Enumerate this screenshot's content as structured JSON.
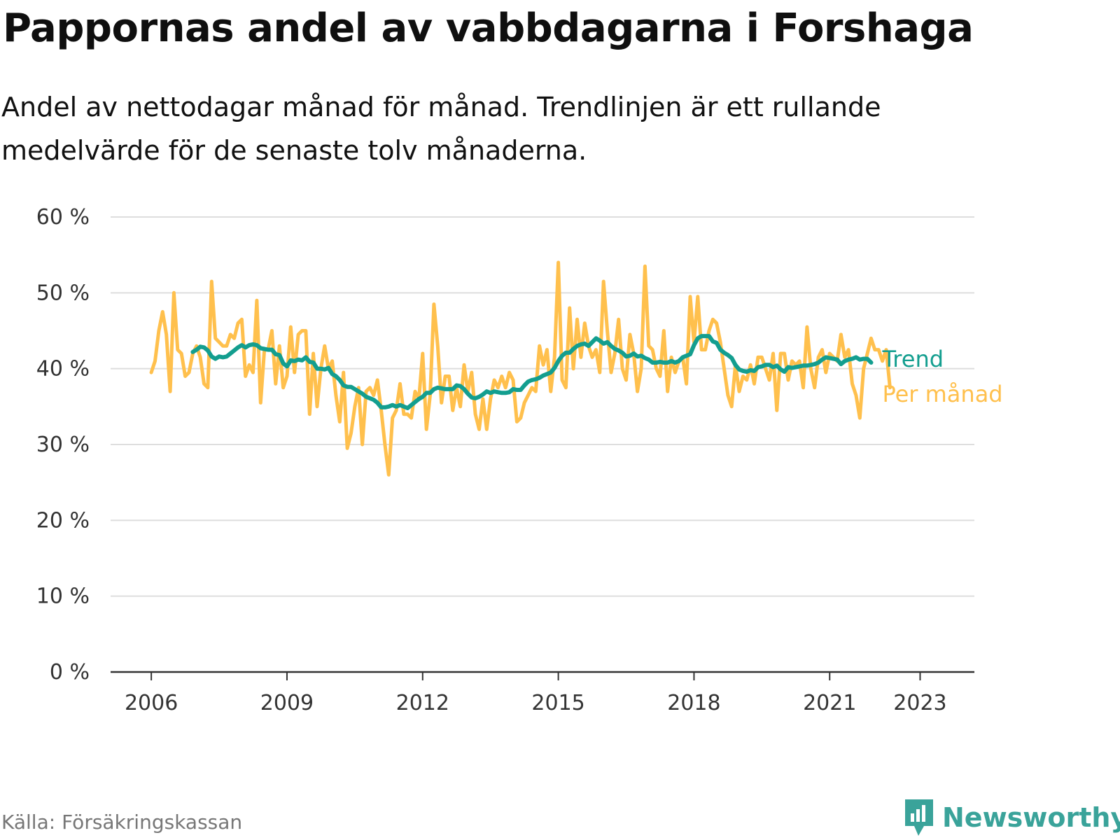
{
  "chart_data": {
    "type": "line",
    "title": "Pappornas andel av vabbdagarna i Forshaga",
    "subtitle_lines": [
      "Andel av nettodagar månad för månad. Trendlinjen är ett rullande",
      "medelvärde för de senaste tolv månaderna."
    ],
    "xlabel": "",
    "ylabel": "",
    "ylim": [
      0,
      60
    ],
    "yticks": [
      0,
      10,
      20,
      30,
      40,
      50,
      60
    ],
    "ytick_labels": [
      "0 %",
      "10 %",
      "20 %",
      "30 %",
      "40 %",
      "50 %",
      "60 %"
    ],
    "xticks": [
      2006,
      2009,
      2012,
      2015,
      2018,
      2021,
      2023
    ],
    "xtick_labels": [
      "2006",
      "2009",
      "2012",
      "2015",
      "2018",
      "2021",
      "2023"
    ],
    "xlim": [
      2005.1,
      2024.2
    ],
    "grid": true,
    "legend": "right-end labels",
    "series": [
      {
        "name": "Per månad",
        "color": "#ffc04d",
        "x_start": 2006.0,
        "step": 0.08333,
        "values": [
          39.5,
          41,
          45,
          47.5,
          44.5,
          37,
          50,
          42.5,
          42,
          39,
          39.5,
          42,
          43,
          41.5,
          38,
          37.5,
          51.5,
          44,
          43.5,
          43,
          43,
          44.5,
          44,
          46,
          46.5,
          39,
          40.5,
          39.5,
          49,
          35.5,
          42.5,
          42.5,
          45,
          38,
          43,
          37.5,
          39,
          45.5,
          39.5,
          44.5,
          45,
          45,
          34,
          42,
          35,
          40,
          43,
          40,
          41,
          36.5,
          33,
          39.5,
          29.5,
          31.5,
          35,
          37.5,
          30,
          37,
          37.5,
          36.5,
          38.5,
          34.5,
          30,
          26,
          33.5,
          34.5,
          38,
          34,
          34,
          33.5,
          37,
          36,
          42,
          32,
          36.5,
          48.5,
          43,
          35.5,
          39,
          39,
          34.5,
          37.5,
          35,
          40.5,
          37,
          39.5,
          34,
          32,
          36,
          32,
          36,
          38.5,
          37.5,
          39,
          37.5,
          39.5,
          38.5,
          33,
          33.5,
          35.5,
          36.5,
          37.5,
          37,
          43,
          40.5,
          42.5,
          37,
          41.5,
          54,
          38.5,
          37.5,
          48,
          40,
          46.5,
          41.5,
          46,
          43,
          41.5,
          42.5,
          39.5,
          51.5,
          45,
          39.5,
          42,
          46.5,
          40,
          38.5,
          44.5,
          42,
          37,
          40,
          53.5,
          43,
          42.5,
          40,
          39,
          45,
          37,
          41.5,
          39.5,
          41,
          41.5,
          38,
          49.5,
          43.5,
          49.5,
          42.5,
          42.5,
          45,
          46.5,
          46,
          43.5,
          40,
          36.5,
          35,
          40.5,
          37,
          39,
          38.5,
          40.5,
          38,
          41.5,
          41.5,
          40,
          38.5,
          42,
          34.5,
          42,
          42,
          38.5,
          41,
          40.5,
          41,
          37.5,
          45.5,
          40,
          37.5,
          41.5,
          42.5,
          39.5,
          42,
          41.5,
          41,
          44.5,
          41.5,
          42.5,
          38,
          36.5,
          33.5,
          40,
          42,
          44,
          42.5,
          42.5,
          41,
          42.5,
          37.5
        ]
      },
      {
        "name": "Trend",
        "color": "#139e8f",
        "x_start": 2006.917,
        "step": 0.08333,
        "values": [
          42.2,
          42.5,
          42.9,
          42.8,
          42.4,
          41.6,
          41.3,
          41.6,
          41.5,
          41.6,
          42,
          42.4,
          42.8,
          43.1,
          42.8,
          43.1,
          43.2,
          43.1,
          42.7,
          42.6,
          42.5,
          42.5,
          41.9,
          41.8,
          40.7,
          40.3,
          41.1,
          41,
          41.2,
          41.1,
          41.5,
          40.9,
          40.8,
          40,
          40,
          39.9,
          40.1,
          39.3,
          39,
          38.5,
          37.8,
          37.6,
          37.6,
          37.3,
          37,
          36.7,
          36.3,
          36.1,
          35.9,
          35.5,
          34.9,
          34.9,
          35,
          35.2,
          35,
          35.2,
          35,
          34.8,
          35.2,
          35.6,
          36,
          36.3,
          36.8,
          36.8,
          37.3,
          37.5,
          37.4,
          37.3,
          37.3,
          37.3,
          37.8,
          37.7,
          37.3,
          36.7,
          36.2,
          36.1,
          36.3,
          36.6,
          37,
          36.8,
          37,
          36.9,
          36.8,
          36.8,
          36.9,
          37.3,
          37.2,
          37.2,
          37.8,
          38.3,
          38.5,
          38.6,
          38.8,
          39.1,
          39.3,
          39.5,
          40.1,
          41,
          41.7,
          42.1,
          42.1,
          42.6,
          43,
          43.2,
          43.3,
          43,
          43.5,
          44,
          43.7,
          43.3,
          43.5,
          43,
          42.6,
          42.4,
          42.1,
          41.6,
          41.7,
          42,
          41.6,
          41.7,
          41.4,
          41.2,
          40.8,
          40.8,
          40.9,
          40.8,
          40.8,
          41,
          40.8,
          41,
          41.5,
          41.7,
          41.9,
          43.1,
          44,
          44.3,
          44.3,
          44.3,
          43.6,
          43.4,
          42.5,
          42.1,
          41.8,
          41.4,
          40.5,
          39.9,
          39.7,
          39.6,
          39.8,
          39.7,
          40.2,
          40.3,
          40.5,
          40.5,
          40.2,
          40.4,
          39.9,
          39.6,
          40.2,
          40.1,
          40.2,
          40.3,
          40.4,
          40.4,
          40.5,
          40.6,
          40.8,
          41.2,
          41.5,
          41.4,
          41.3,
          41.2,
          40.6,
          41,
          41.2,
          41.3,
          41.5,
          41.2,
          41.3,
          41.3,
          40.8
        ]
      }
    ]
  },
  "source": "Källa: Försäkringskassan",
  "brand": {
    "name": "Newsworthy",
    "icon": "newsworthy-logo-icon",
    "color": "#3aa39a"
  }
}
